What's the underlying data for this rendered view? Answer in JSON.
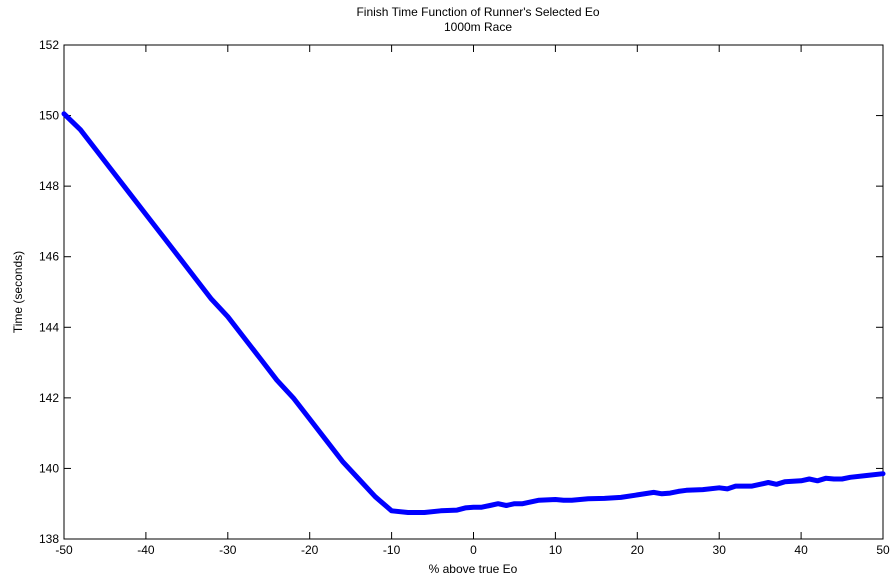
{
  "chart_data": {
    "type": "line",
    "title": "Finish Time Function of Runner's Selected Eo",
    "subtitle": "1000m Race",
    "xlabel": "% above true Eo",
    "ylabel": "Time (seconds)",
    "xlim": [
      -50,
      50
    ],
    "ylim": [
      138,
      152
    ],
    "xticks": [
      "-50",
      "-40",
      "-30",
      "-20",
      "-10",
      "0",
      "10",
      "20",
      "30",
      "40",
      "50"
    ],
    "yticks": [
      "138",
      "140",
      "142",
      "144",
      "146",
      "148",
      "150",
      "152"
    ],
    "grid": false,
    "series": [
      {
        "color": "#0000ff",
        "x": [
          -50,
          -48,
          -46,
          -44,
          -42,
          -40,
          -38,
          -36,
          -34,
          -32,
          -30,
          -28,
          -26,
          -24,
          -22,
          -20,
          -18,
          -16,
          -14,
          -12,
          -10,
          -8,
          -6,
          -4,
          -2,
          -1,
          0,
          1,
          2,
          3,
          4,
          5,
          6,
          7,
          8,
          10,
          11,
          12,
          13,
          14,
          16,
          18,
          20,
          22,
          23,
          24,
          25,
          26,
          28,
          30,
          31,
          32,
          34,
          35,
          36,
          37,
          38,
          40,
          41,
          42,
          43,
          44,
          45,
          46,
          48,
          50
        ],
        "y": [
          150.05,
          149.6,
          149.0,
          148.4,
          147.8,
          147.2,
          146.6,
          146.0,
          145.4,
          144.8,
          144.3,
          143.7,
          143.1,
          142.5,
          142.0,
          141.4,
          140.8,
          140.2,
          139.7,
          139.2,
          138.8,
          138.75,
          138.75,
          138.8,
          138.82,
          138.88,
          138.9,
          138.9,
          138.95,
          139.0,
          138.95,
          139.0,
          139.0,
          139.05,
          139.1,
          139.12,
          139.1,
          139.1,
          139.12,
          139.14,
          139.15,
          139.18,
          139.25,
          139.32,
          139.28,
          139.3,
          139.35,
          139.38,
          139.4,
          139.45,
          139.42,
          139.5,
          139.5,
          139.55,
          139.6,
          139.55,
          139.62,
          139.65,
          139.7,
          139.65,
          139.72,
          139.7,
          139.7,
          139.75,
          139.8,
          139.85
        ]
      }
    ]
  }
}
